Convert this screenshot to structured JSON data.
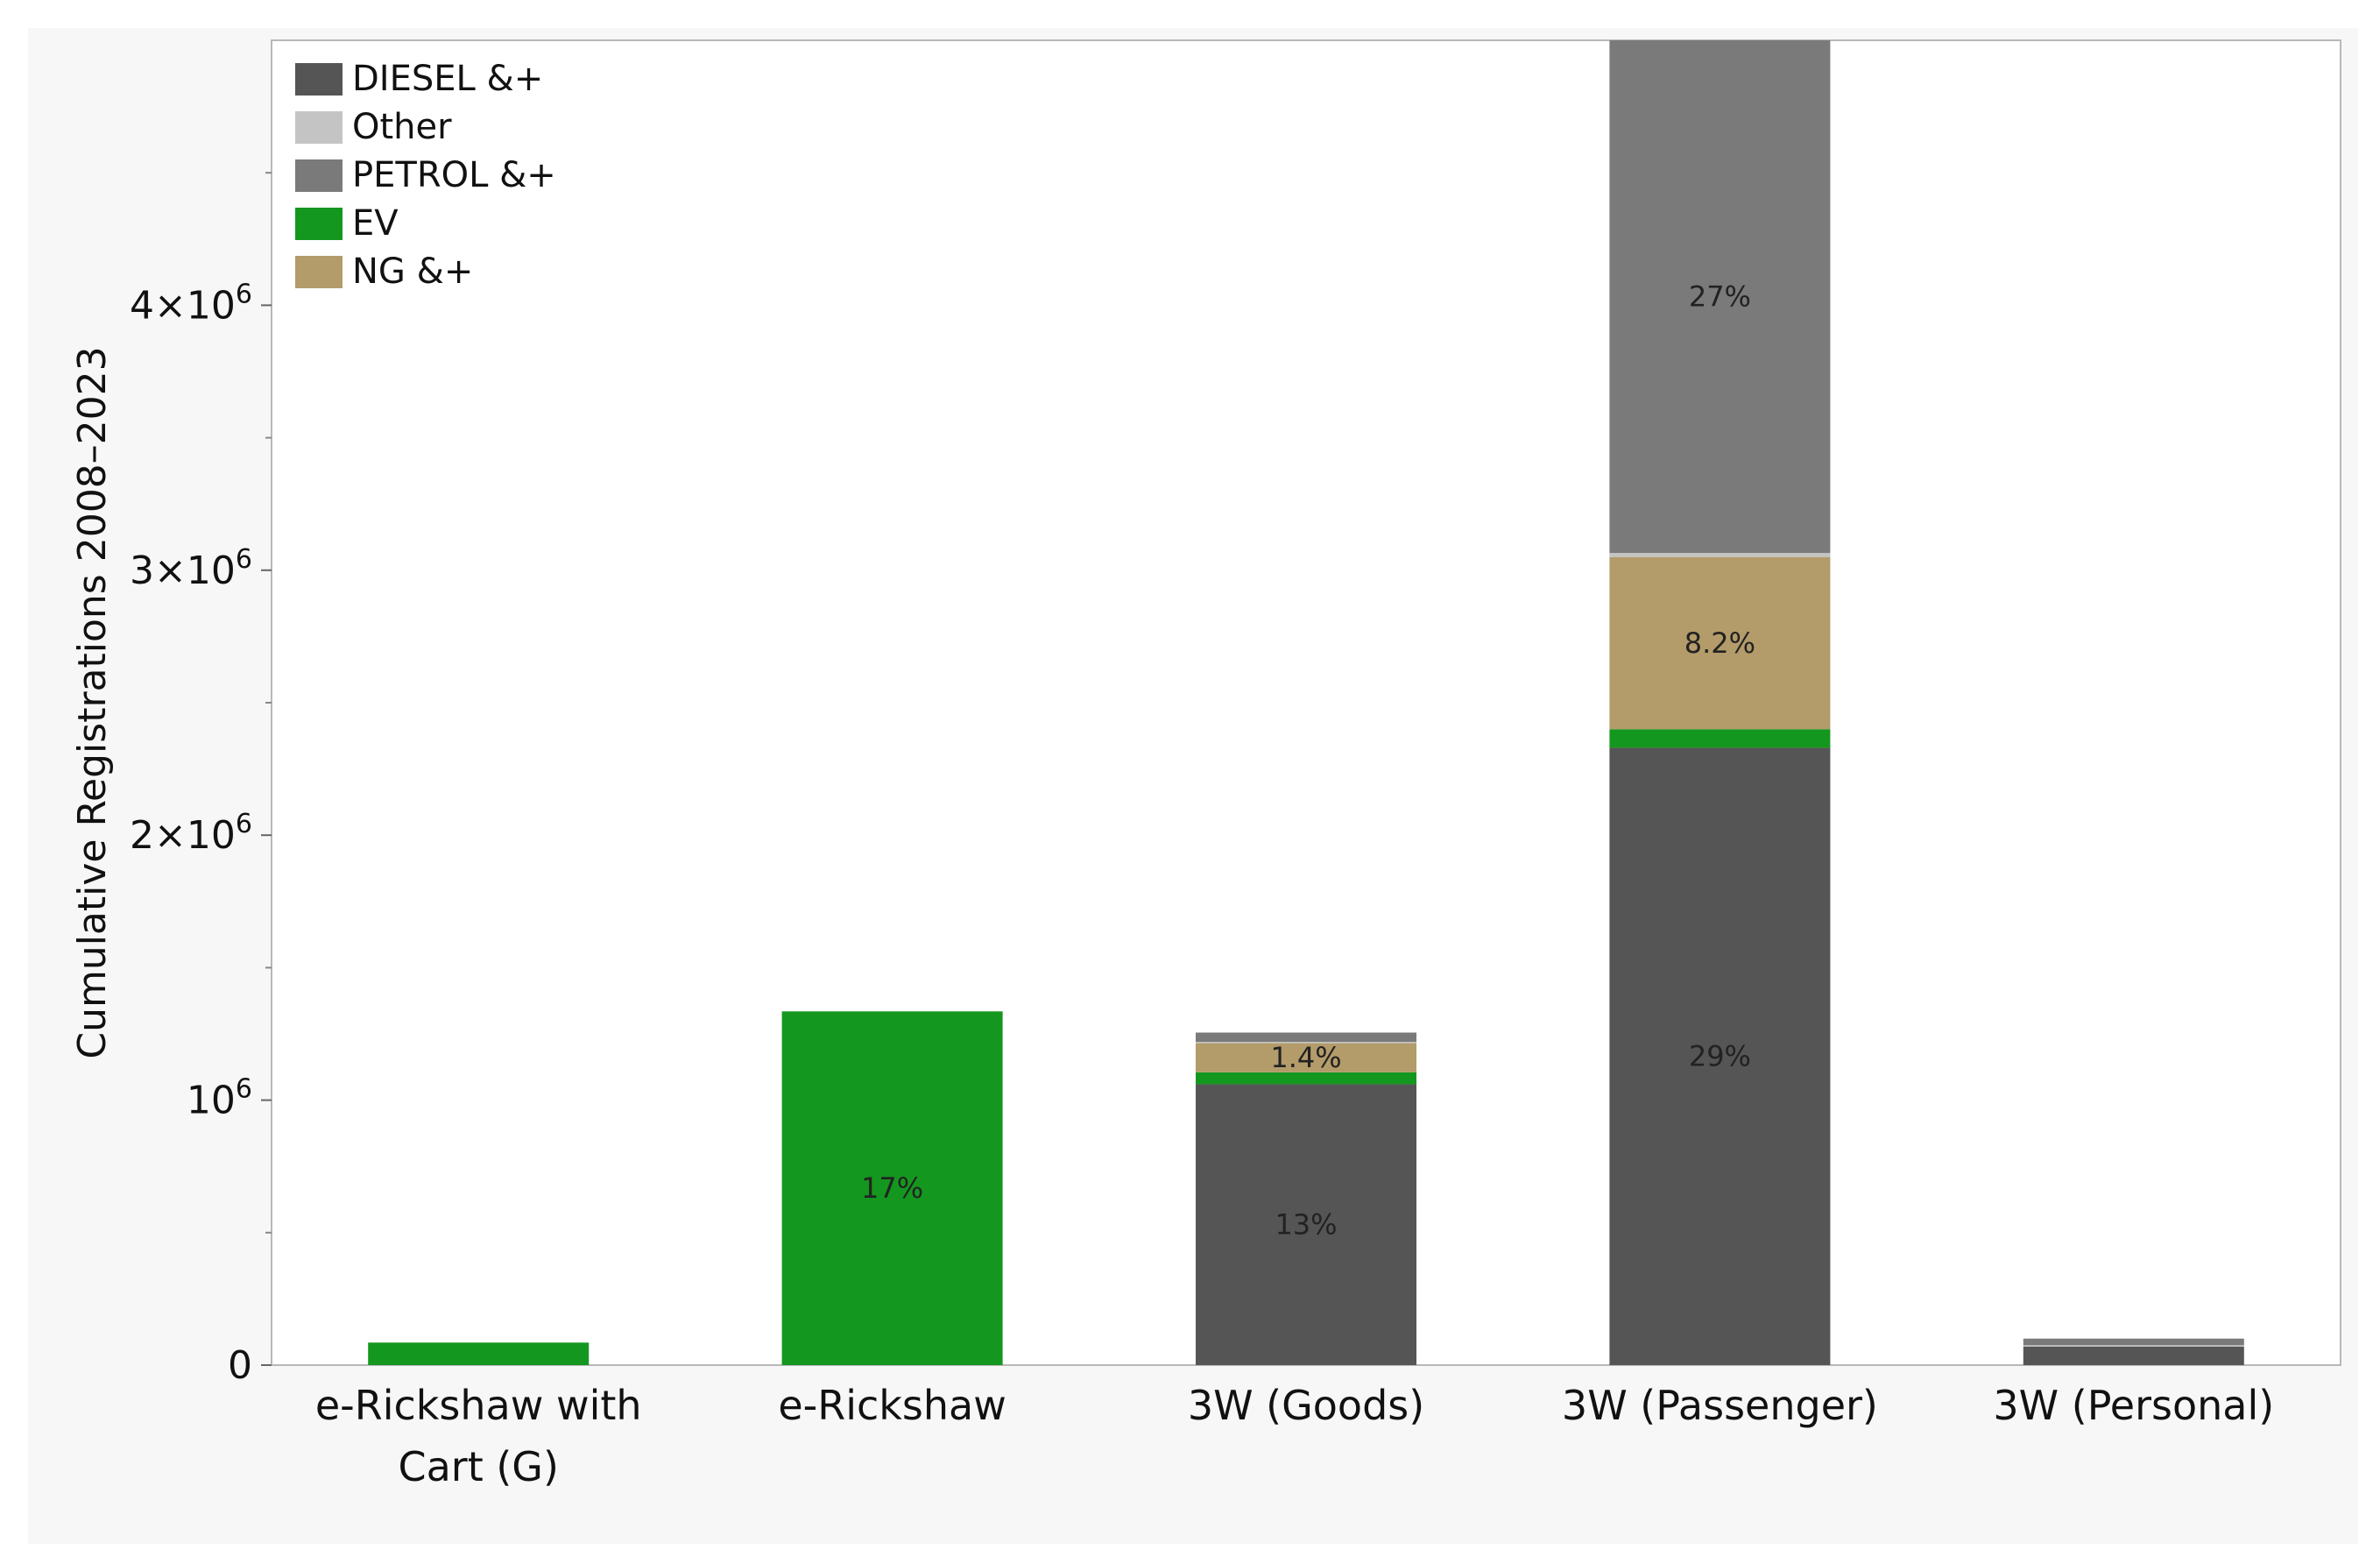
{
  "chart_data": {
    "type": "bar",
    "stacked": true,
    "ylabel": "Cumulative Registrations 2008–2023",
    "xlabel": "",
    "ylim": [
      0,
      5000000
    ],
    "y_ticks": [
      {
        "value": 0,
        "label": "0"
      },
      {
        "value": 1000000,
        "label": "10",
        "sup": "6"
      },
      {
        "value": 2000000,
        "label": "2×10",
        "sup": "6"
      },
      {
        "value": 3000000,
        "label": "3×10",
        "sup": "6"
      },
      {
        "value": 4000000,
        "label": "4×10",
        "sup": "6"
      }
    ],
    "y_minor_ticks": [
      500000,
      1500000,
      2500000,
      3500000,
      4500000
    ],
    "categories": [
      {
        "lines": [
          "e-Rickshaw with",
          "Cart (G)"
        ]
      },
      {
        "lines": [
          "e-Rickshaw"
        ]
      },
      {
        "lines": [
          "3W (Goods)"
        ]
      },
      {
        "lines": [
          "3W (Passenger)"
        ]
      },
      {
        "lines": [
          "3W (Personal)"
        ]
      }
    ],
    "series": [
      {
        "name": "DIESEL &+",
        "color": "#555555",
        "values": [
          0,
          0,
          1060000,
          2330000,
          70000
        ],
        "labels": [
          "",
          "",
          "13%",
          "29%",
          ""
        ]
      },
      {
        "name": "EV",
        "color": "#14971f",
        "values": [
          85000,
          1335000,
          45000,
          70000,
          0
        ],
        "labels": [
          "",
          "17%",
          "",
          "",
          ""
        ]
      },
      {
        "name": "NG &+",
        "color": "#b39c6a",
        "values": [
          0,
          0,
          110000,
          650000,
          0
        ],
        "labels": [
          "",
          "",
          "1.4%",
          "8.2%",
          ""
        ]
      },
      {
        "name": "Other",
        "color": "#c4c4c4",
        "values": [
          0,
          0,
          5000,
          15000,
          5000
        ],
        "labels": [
          "",
          "",
          "",
          "",
          ""
        ]
      },
      {
        "name": "PETROL &+",
        "color": "#7a7a7a",
        "values": [
          0,
          0,
          35000,
          1935000,
          25000
        ],
        "labels": [
          "",
          "",
          "",
          "27%",
          ""
        ]
      }
    ],
    "legend": {
      "position": "top-left",
      "order": [
        "DIESEL &+",
        "Other",
        "PETROL &+",
        "EV",
        "NG &+"
      ]
    },
    "grid": false
  }
}
